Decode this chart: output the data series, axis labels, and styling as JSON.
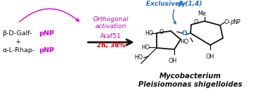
{
  "background_color": "#ffffff",
  "reactant1_black": "β-D-Galf-",
  "reactant1_purple": "pNP",
  "plus": "+",
  "reactant2_black": "α-L-Rhap-",
  "reactant2_purple": "pNP",
  "arrow_label_line1": "Orthogonal",
  "arrow_label_line2": "activation",
  "arrow_label_line3": "Araf51",
  "arrow_label_red": "2h, 38%",
  "exclusive_text": "Exclusively β-(1,4)",
  "organism_line1": "Mycobacterium",
  "organism_line2": "Pleisiomonas shigelloides",
  "purple_color": "#cc00cc",
  "red_color": "#dd0000",
  "blue_color": "#1a6fcc",
  "black_color": "#111111"
}
